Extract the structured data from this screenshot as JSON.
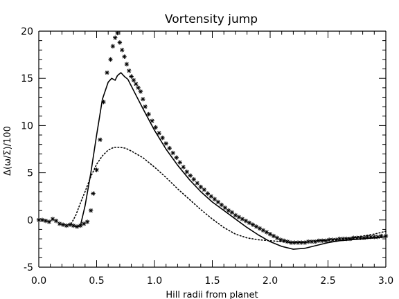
{
  "chart_data": {
    "type": "line",
    "title": "Vortensity jump",
    "xlabel": "Hill radii from planet",
    "ylabel": "Δ(ω/Σ)/100",
    "xlim": [
      0.0,
      3.0
    ],
    "ylim": [
      -5.0,
      20.0
    ],
    "x_ticks": [
      0.0,
      0.5,
      1.0,
      1.5,
      2.0,
      2.5,
      3.0
    ],
    "x_tick_labels": [
      "0.0",
      "0.5",
      "1.0",
      "1.5",
      "2.0",
      "2.5",
      "3.0"
    ],
    "y_ticks": [
      -5,
      0,
      5,
      10,
      15,
      20
    ],
    "y_tick_labels": [
      "-5",
      "0",
      "5",
      "10",
      "15",
      "20"
    ],
    "grid": false,
    "legend": "none",
    "series": [
      {
        "style": "solid",
        "points": [
          [
            0.32,
            -0.7
          ],
          [
            0.36,
            -0.6
          ],
          [
            0.4,
            1.5
          ],
          [
            0.45,
            5.0
          ],
          [
            0.5,
            9.0
          ],
          [
            0.55,
            12.8
          ],
          [
            0.6,
            14.6
          ],
          [
            0.63,
            15.0
          ],
          [
            0.66,
            14.8
          ],
          [
            0.68,
            15.3
          ],
          [
            0.71,
            15.6
          ],
          [
            0.74,
            15.2
          ],
          [
            0.77,
            14.9
          ],
          [
            0.82,
            13.7
          ],
          [
            0.9,
            11.8
          ],
          [
            1.0,
            9.5
          ],
          [
            1.1,
            7.5
          ],
          [
            1.2,
            5.8
          ],
          [
            1.3,
            4.3
          ],
          [
            1.4,
            3.0
          ],
          [
            1.5,
            1.9
          ],
          [
            1.6,
            1.0
          ],
          [
            1.7,
            0.1
          ],
          [
            1.8,
            -0.8
          ],
          [
            1.9,
            -1.6
          ],
          [
            2.0,
            -2.3
          ],
          [
            2.1,
            -2.8
          ],
          [
            2.2,
            -3.1
          ],
          [
            2.3,
            -3.0
          ],
          [
            2.4,
            -2.7
          ],
          [
            2.5,
            -2.4
          ],
          [
            2.6,
            -2.2
          ],
          [
            2.7,
            -2.1
          ],
          [
            2.8,
            -2.0
          ],
          [
            2.9,
            -1.9
          ],
          [
            3.0,
            -1.8
          ]
        ]
      },
      {
        "style": "dotted",
        "points": [
          [
            0.28,
            -0.4
          ],
          [
            0.32,
            0.5
          ],
          [
            0.36,
            1.8
          ],
          [
            0.4,
            3.0
          ],
          [
            0.45,
            4.6
          ],
          [
            0.5,
            5.9
          ],
          [
            0.55,
            6.8
          ],
          [
            0.6,
            7.4
          ],
          [
            0.65,
            7.7
          ],
          [
            0.7,
            7.7
          ],
          [
            0.75,
            7.6
          ],
          [
            0.8,
            7.3
          ],
          [
            0.9,
            6.6
          ],
          [
            1.0,
            5.6
          ],
          [
            1.1,
            4.5
          ],
          [
            1.2,
            3.3
          ],
          [
            1.3,
            2.2
          ],
          [
            1.4,
            1.1
          ],
          [
            1.5,
            0.1
          ],
          [
            1.6,
            -0.8
          ],
          [
            1.7,
            -1.5
          ],
          [
            1.8,
            -1.9
          ],
          [
            1.9,
            -2.1
          ],
          [
            2.0,
            -2.2
          ],
          [
            2.1,
            -2.3
          ],
          [
            2.2,
            -2.4
          ],
          [
            2.3,
            -2.3
          ],
          [
            2.4,
            -2.2
          ],
          [
            2.5,
            -2.1
          ],
          [
            2.6,
            -2.0
          ],
          [
            2.7,
            -1.9
          ],
          [
            2.8,
            -1.7
          ],
          [
            2.9,
            -1.5
          ],
          [
            3.0,
            -1.2
          ]
        ]
      },
      {
        "style": "asterisk",
        "points": [
          [
            0.0,
            0.0
          ],
          [
            0.03,
            0.0
          ],
          [
            0.06,
            -0.1
          ],
          [
            0.09,
            -0.2
          ],
          [
            0.12,
            0.1
          ],
          [
            0.15,
            -0.1
          ],
          [
            0.18,
            -0.4
          ],
          [
            0.21,
            -0.5
          ],
          [
            0.24,
            -0.6
          ],
          [
            0.27,
            -0.5
          ],
          [
            0.3,
            -0.6
          ],
          [
            0.33,
            -0.7
          ],
          [
            0.36,
            -0.6
          ],
          [
            0.39,
            -0.4
          ],
          [
            0.42,
            -0.2
          ],
          [
            0.45,
            1.0
          ],
          [
            0.47,
            2.8
          ],
          [
            0.5,
            5.3
          ],
          [
            0.53,
            8.5
          ],
          [
            0.56,
            12.5
          ],
          [
            0.59,
            15.6
          ],
          [
            0.62,
            17.0
          ],
          [
            0.64,
            18.4
          ],
          [
            0.66,
            19.3
          ],
          [
            0.68,
            19.8
          ],
          [
            0.7,
            18.8
          ],
          [
            0.72,
            18.0
          ],
          [
            0.74,
            17.3
          ],
          [
            0.76,
            16.5
          ],
          [
            0.78,
            15.8
          ],
          [
            0.8,
            15.2
          ],
          [
            0.82,
            14.8
          ],
          [
            0.84,
            14.4
          ],
          [
            0.86,
            14.0
          ],
          [
            0.88,
            13.6
          ],
          [
            0.9,
            12.8
          ],
          [
            0.92,
            12.0
          ],
          [
            0.95,
            11.2
          ],
          [
            0.98,
            10.5
          ],
          [
            1.01,
            9.8
          ],
          [
            1.04,
            9.2
          ],
          [
            1.07,
            8.7
          ],
          [
            1.1,
            8.1
          ],
          [
            1.13,
            7.6
          ],
          [
            1.16,
            7.1
          ],
          [
            1.19,
            6.6
          ],
          [
            1.22,
            6.1
          ],
          [
            1.25,
            5.6
          ],
          [
            1.28,
            5.1
          ],
          [
            1.31,
            4.7
          ],
          [
            1.34,
            4.3
          ],
          [
            1.37,
            3.9
          ],
          [
            1.4,
            3.5
          ],
          [
            1.43,
            3.2
          ],
          [
            1.46,
            2.8
          ],
          [
            1.49,
            2.5
          ],
          [
            1.52,
            2.2
          ],
          [
            1.55,
            1.9
          ],
          [
            1.58,
            1.6
          ],
          [
            1.61,
            1.3
          ],
          [
            1.64,
            1.0
          ],
          [
            1.67,
            0.8
          ],
          [
            1.7,
            0.5
          ],
          [
            1.73,
            0.3
          ],
          [
            1.76,
            0.1
          ],
          [
            1.79,
            -0.1
          ],
          [
            1.82,
            -0.3
          ],
          [
            1.85,
            -0.5
          ],
          [
            1.88,
            -0.7
          ],
          [
            1.91,
            -0.9
          ],
          [
            1.94,
            -1.1
          ],
          [
            1.97,
            -1.3
          ],
          [
            2.0,
            -1.5
          ],
          [
            2.03,
            -1.7
          ],
          [
            2.06,
            -1.9
          ],
          [
            2.09,
            -2.1
          ],
          [
            2.12,
            -2.2
          ],
          [
            2.15,
            -2.3
          ],
          [
            2.18,
            -2.4
          ],
          [
            2.21,
            -2.4
          ],
          [
            2.24,
            -2.4
          ],
          [
            2.27,
            -2.4
          ],
          [
            2.3,
            -2.4
          ],
          [
            2.33,
            -2.3
          ],
          [
            2.36,
            -2.3
          ],
          [
            2.39,
            -2.3
          ],
          [
            2.42,
            -2.2
          ],
          [
            2.45,
            -2.2
          ],
          [
            2.48,
            -2.2
          ],
          [
            2.51,
            -2.1
          ],
          [
            2.54,
            -2.1
          ],
          [
            2.57,
            -2.1
          ],
          [
            2.6,
            -2.0
          ],
          [
            2.63,
            -2.0
          ],
          [
            2.66,
            -2.0
          ],
          [
            2.69,
            -2.0
          ],
          [
            2.72,
            -1.9
          ],
          [
            2.75,
            -1.9
          ],
          [
            2.78,
            -1.9
          ],
          [
            2.81,
            -1.9
          ],
          [
            2.84,
            -1.8
          ],
          [
            2.87,
            -1.8
          ],
          [
            2.9,
            -1.8
          ],
          [
            2.93,
            -1.8
          ],
          [
            2.96,
            -1.7
          ],
          [
            3.0,
            -1.7
          ]
        ]
      }
    ]
  }
}
